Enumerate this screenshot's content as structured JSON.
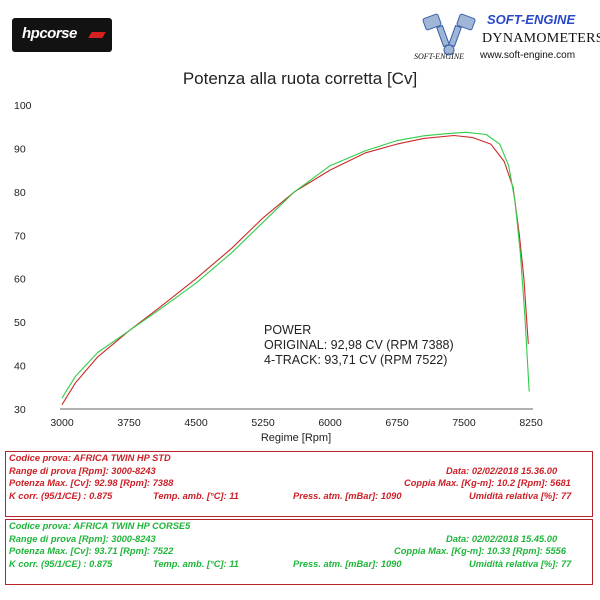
{
  "logos": {
    "left_text": "hpcorse",
    "right_brand": "SOFT-ENGINE",
    "right_title": "DYNAMOMETERS",
    "right_url": "www.soft-engine.com",
    "right_small": "SOFT-ENGINE"
  },
  "chart_data": {
    "type": "line",
    "title": "Potenza alla ruota corretta [Cv]",
    "xlabel": "Regime [Rpm]",
    "ylabel": "",
    "xlim": [
      3000,
      8250
    ],
    "ylim": [
      30,
      100
    ],
    "xticks": [
      3000,
      3750,
      4500,
      5250,
      6000,
      6750,
      7500,
      8250
    ],
    "yticks": [
      30,
      40,
      50,
      60,
      70,
      80,
      90,
      100
    ],
    "grid": false,
    "series": [
      {
        "color": "#cc2a2a",
        "x": [
          3000,
          3150,
          3400,
          3750,
          4100,
          4500,
          4900,
          5250,
          5600,
          6000,
          6400,
          6750,
          7050,
          7388,
          7600,
          7800,
          7950,
          8050,
          8120,
          8170,
          8220
        ],
        "y": [
          31,
          36,
          42,
          48,
          53.5,
          60,
          67,
          74,
          80,
          85,
          89,
          91,
          92.3,
          92.98,
          92.5,
          91,
          87,
          81,
          70,
          60,
          45
        ]
      },
      {
        "color": "#2fce4a",
        "x": [
          3000,
          3150,
          3400,
          3750,
          4100,
          4500,
          4900,
          5250,
          5600,
          6000,
          6400,
          6750,
          7050,
          7300,
          7522,
          7750,
          7900,
          8000,
          8070,
          8130,
          8180,
          8230
        ],
        "y": [
          32.5,
          37.5,
          43,
          48,
          53,
          59,
          66,
          73,
          80,
          86,
          89.5,
          91.8,
          92.9,
          93.4,
          93.71,
          93.2,
          91,
          86,
          78,
          66,
          52,
          34
        ]
      }
    ],
    "annotations": [
      "POWER",
      "ORIGINAL: 92,98 CV (RPM 7388)",
      "4-TRACK: 93,71 CV (RPM 7522)"
    ]
  },
  "info_boxes": [
    {
      "color": "#cc1f26",
      "rows": [
        [
          "Codice prova: AFRICA TWIN HP STD",
          "",
          ""
        ],
        [
          "Range di prova [Rpm]: 3000-8243",
          "",
          "Data: 02/02/2018   15.36.00"
        ],
        [
          "Potenza Max. [Cv]: 92.98   [Rpm]: 7388",
          "",
          "Coppia Max. [Kg-m]: 10.2   [Rpm]: 5681"
        ],
        [
          "K corr. (95/1/CE) : 0.875",
          "Temp. amb. [°C]: 11",
          "Press. atm. [mBar]: 1090",
          "Umidità relativa [%]: 77"
        ]
      ]
    },
    {
      "color": "#1fb53a",
      "rows": [
        [
          "Codice prova: AFRICA TWIN HP CORSE5",
          "",
          ""
        ],
        [
          "Range di prova [Rpm]: 3000-8243",
          "",
          "Data: 02/02/2018   15.45.00"
        ],
        [
          "Potenza Max. [Cv]: 93.71   [Rpm]: 7522",
          "",
          "Coppia Max. [Kg-m]: 10.33   [Rpm]: 5556"
        ],
        [
          "K corr. (95/1/CE) : 0.875",
          "Temp. amb. [°C]: 11",
          "Press. atm. [mBar]: 1090",
          "Umidità relativa [%]: 77"
        ]
      ]
    }
  ]
}
